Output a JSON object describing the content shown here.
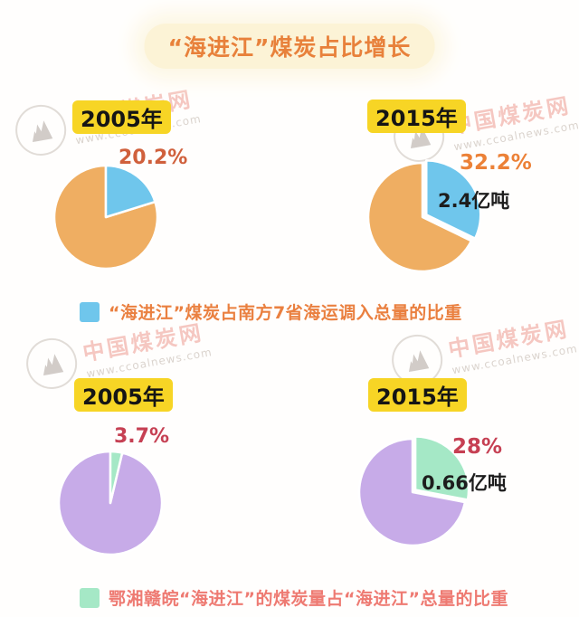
{
  "title": {
    "text": "“海进江”煤炭占比增长",
    "color": "#e8813b",
    "bg": "#fcf3d6"
  },
  "watermark": {
    "site_name": "中国煤炭网",
    "site_url": "www.ccoalnews.com"
  },
  "legends": [
    {
      "swatch_color": "#6fc6ec",
      "text_color": "#ea8040",
      "label": "“海进江”煤炭占南方7省海运调入总量的比重"
    },
    {
      "swatch_color": "#a5e8c6",
      "text_color": "#ee7a72",
      "label": "鄂湘赣皖“海进江”的煤炭量占“海进江”总量的比重"
    }
  ],
  "chart_data": [
    {
      "type": "pie",
      "year": "2005年",
      "series": "“海进江”煤炭占南方7省海运调入总量的比重",
      "percent": 20.2,
      "percent_label": "20.2%",
      "amount_label": "",
      "slice_color": "#6fc6ec",
      "base_color": "#efae62",
      "percent_color": "#d0603c",
      "explode": 0
    },
    {
      "type": "pie",
      "year": "2015年",
      "series": "“海进江”煤炭占南方7省海运调入总量的比重",
      "percent": 32.2,
      "percent_label": "32.2%",
      "amount_label": "2.4亿吨",
      "slice_color": "#6fc6ec",
      "base_color": "#efae62",
      "percent_color": "#ec8137",
      "explode": 5
    },
    {
      "type": "pie",
      "year": "2005年",
      "series": "鄂湘赣皖“海进江”的煤炭量占“海进江”总量的比重",
      "percent": 3.7,
      "percent_label": "3.7%",
      "amount_label": "",
      "slice_color": "#a5e8c6",
      "base_color": "#c7abe8",
      "percent_color": "#c64053",
      "explode": 0
    },
    {
      "type": "pie",
      "year": "2015年",
      "series": "鄂湘赣皖“海进江”的煤炭量占“海进江”总量的比重",
      "percent": 28,
      "percent_label": "28%",
      "amount_label": "0.66亿吨",
      "slice_color": "#a5e8c6",
      "base_color": "#c7abe8",
      "percent_color": "#c64053",
      "explode": 4
    }
  ]
}
